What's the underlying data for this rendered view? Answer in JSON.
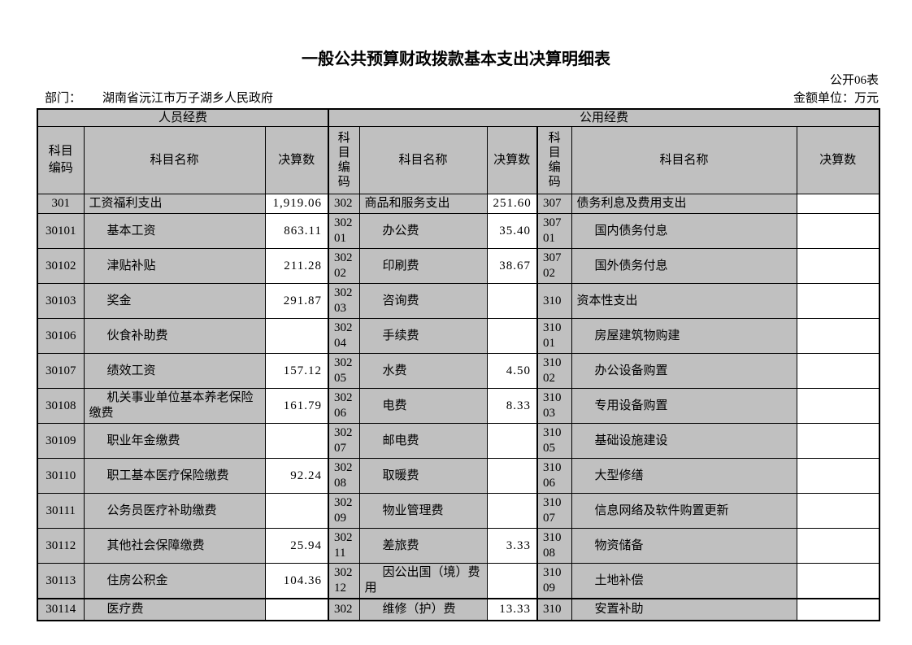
{
  "page": {
    "title": "一般公共预算财政拨款基本支出决算明细表",
    "form_no": "公开06表",
    "department_label": "部门：",
    "department_value": "湖南省沅江市万子湖乡人民政府",
    "unit_label": "金额单位：万元"
  },
  "colors": {
    "cell_gray": "#c0c0c0",
    "amount_cell_white": "#ffffff",
    "border_black": "#000000"
  },
  "table": {
    "sections": {
      "personnel": "人员经费",
      "public": "公用经费"
    },
    "columns": {
      "code": "科目编码",
      "name": "科目名称",
      "amount": "决算数"
    },
    "rows": [
      {
        "g1": {
          "code": "301",
          "name": "工资福利支出",
          "amount": "1,919.06",
          "sub": false
        },
        "g2": {
          "code": "302",
          "name": "商品和服务支出",
          "amount": "251.60",
          "sub": false
        },
        "g3": {
          "code": "307",
          "name": "债务利息及费用支出",
          "amount": "",
          "sub": false
        }
      },
      {
        "g1": {
          "code": "30101",
          "name": "基本工资",
          "amount": "863.11",
          "sub": true
        },
        "g2": {
          "code": "30201",
          "name": "办公费",
          "amount": "35.40",
          "sub": true
        },
        "g3": {
          "code": "30701",
          "name": "国内债务付息",
          "amount": "",
          "sub": true
        }
      },
      {
        "g1": {
          "code": "30102",
          "name": "津贴补贴",
          "amount": "211.28",
          "sub": true
        },
        "g2": {
          "code": "30202",
          "name": "印刷费",
          "amount": "38.67",
          "sub": true
        },
        "g3": {
          "code": "30702",
          "name": "国外债务付息",
          "amount": "",
          "sub": true
        }
      },
      {
        "g1": {
          "code": "30103",
          "name": "奖金",
          "amount": "291.87",
          "sub": true
        },
        "g2": {
          "code": "30203",
          "name": "咨询费",
          "amount": "",
          "sub": true
        },
        "g3": {
          "code": "310",
          "name": "资本性支出",
          "amount": "",
          "sub": false
        }
      },
      {
        "g1": {
          "code": "30106",
          "name": "伙食补助费",
          "amount": "",
          "sub": true
        },
        "g2": {
          "code": "30204",
          "name": "手续费",
          "amount": "",
          "sub": true
        },
        "g3": {
          "code": "31001",
          "name": "房屋建筑物购建",
          "amount": "",
          "sub": true
        }
      },
      {
        "g1": {
          "code": "30107",
          "name": "绩效工资",
          "amount": "157.12",
          "sub": true
        },
        "g2": {
          "code": "30205",
          "name": "水费",
          "amount": "4.50",
          "sub": true
        },
        "g3": {
          "code": "31002",
          "name": "办公设备购置",
          "amount": "",
          "sub": true
        }
      },
      {
        "g1": {
          "code": "30108",
          "name": "机关事业单位基本养老保险缴费",
          "amount": "161.79",
          "sub": true
        },
        "g2": {
          "code": "30206",
          "name": "电费",
          "amount": "8.33",
          "sub": true
        },
        "g3": {
          "code": "31003",
          "name": "专用设备购置",
          "amount": "",
          "sub": true
        }
      },
      {
        "g1": {
          "code": "30109",
          "name": "职业年金缴费",
          "amount": "",
          "sub": true
        },
        "g2": {
          "code": "30207",
          "name": "邮电费",
          "amount": "",
          "sub": true
        },
        "g3": {
          "code": "31005",
          "name": "基础设施建设",
          "amount": "",
          "sub": true
        }
      },
      {
        "g1": {
          "code": "30110",
          "name": "职工基本医疗保险缴费",
          "amount": "92.24",
          "sub": true
        },
        "g2": {
          "code": "30208",
          "name": "取暖费",
          "amount": "",
          "sub": true
        },
        "g3": {
          "code": "31006",
          "name": "大型修缮",
          "amount": "",
          "sub": true
        }
      },
      {
        "g1": {
          "code": "30111",
          "name": "公务员医疗补助缴费",
          "amount": "",
          "sub": true
        },
        "g2": {
          "code": "30209",
          "name": "物业管理费",
          "amount": "",
          "sub": true
        },
        "g3": {
          "code": "31007",
          "name": "信息网络及软件购置更新",
          "amount": "",
          "sub": true
        }
      },
      {
        "g1": {
          "code": "30112",
          "name": "其他社会保障缴费",
          "amount": "25.94",
          "sub": true
        },
        "g2": {
          "code": "30211",
          "name": "差旅费",
          "amount": "3.33",
          "sub": true
        },
        "g3": {
          "code": "31008",
          "name": "物资储备",
          "amount": "",
          "sub": true
        }
      },
      {
        "g1": {
          "code": "30113",
          "name": "住房公积金",
          "amount": "104.36",
          "sub": true
        },
        "g2": {
          "code": "30212",
          "name": "因公出国（境）费用",
          "amount": "",
          "sub": true
        },
        "g3": {
          "code": "31009",
          "name": "土地补偿",
          "amount": "",
          "sub": true
        }
      },
      {
        "g1": {
          "code": "30114",
          "name": "医疗费",
          "amount": "",
          "sub": true
        },
        "g2": {
          "code": "302",
          "name": "维修（护）费",
          "amount": "13.33",
          "sub": true
        },
        "g3": {
          "code": "310",
          "name": "安置补助",
          "amount": "",
          "sub": true
        }
      }
    ]
  }
}
